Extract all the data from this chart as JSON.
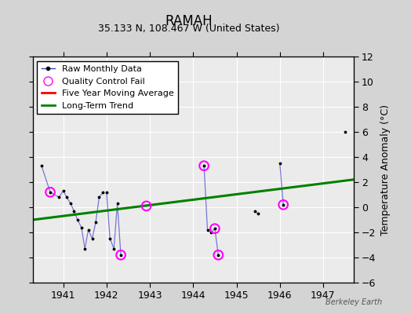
{
  "title": "RAMAH",
  "subtitle": "35.133 N, 108.467 W (United States)",
  "ylabel_right": "Temperature Anomaly (°C)",
  "watermark": "Berkeley Earth",
  "xlim": [
    1940.3,
    1947.7
  ],
  "ylim": [
    -6,
    12
  ],
  "yticks": [
    -6,
    -4,
    -2,
    0,
    2,
    4,
    6,
    8,
    10,
    12
  ],
  "xticks": [
    1941,
    1942,
    1943,
    1944,
    1945,
    1946,
    1947
  ],
  "fig_facecolor": "#d4d4d4",
  "ax_facecolor": "#ebebeb",
  "connected_segments": [
    {
      "x": [
        1940.5,
        1940.7,
        1940.9,
        1941.0,
        1941.08,
        1941.17,
        1941.25,
        1941.33,
        1941.42,
        1941.5,
        1941.58,
        1941.67,
        1941.75,
        1941.83,
        1941.92
      ],
      "y": [
        3.3,
        1.2,
        0.8,
        1.3,
        0.8,
        0.3,
        -0.3,
        -1.0,
        -1.6,
        -3.3,
        -1.8,
        -2.5,
        -1.2,
        0.8,
        1.2
      ]
    },
    {
      "x": [
        1942.0,
        1942.08,
        1942.17,
        1942.25,
        1942.33
      ],
      "y": [
        1.2,
        -2.5,
        -3.3,
        0.3,
        -3.8
      ]
    },
    {
      "x": [
        1944.25,
        1944.33,
        1944.42,
        1944.5,
        1944.58
      ],
      "y": [
        3.3,
        -1.8,
        -2.0,
        -1.7,
        -3.8
      ]
    },
    {
      "x": [
        1945.42,
        1945.5
      ],
      "y": [
        -0.3,
        -0.5
      ]
    },
    {
      "x": [
        1946.0,
        1946.08
      ],
      "y": [
        3.5,
        0.2
      ]
    }
  ],
  "raw_data_x": [
    1940.5,
    1940.7,
    1940.9,
    1941.0,
    1941.08,
    1941.17,
    1941.25,
    1941.33,
    1941.42,
    1941.5,
    1941.58,
    1941.67,
    1941.75,
    1941.83,
    1941.92,
    1942.0,
    1942.08,
    1942.17,
    1942.25,
    1942.33,
    1944.25,
    1944.33,
    1944.42,
    1944.5,
    1944.58,
    1945.42,
    1945.5,
    1946.0,
    1946.08,
    1947.5
  ],
  "raw_data_y": [
    3.3,
    1.2,
    0.8,
    1.3,
    0.8,
    0.3,
    -0.3,
    -1.0,
    -1.6,
    -3.3,
    -1.8,
    -2.5,
    -1.2,
    0.8,
    1.2,
    1.2,
    -2.5,
    -3.3,
    0.3,
    -3.8,
    3.3,
    -1.8,
    -2.0,
    -1.7,
    -3.8,
    -0.3,
    -0.5,
    3.5,
    0.2,
    6.0
  ],
  "qc_fail_x": [
    1940.7,
    1942.33,
    1942.92,
    1944.25,
    1944.5,
    1944.58,
    1946.08
  ],
  "qc_fail_y": [
    1.2,
    -3.8,
    0.1,
    3.3,
    -1.7,
    -3.8,
    0.2
  ],
  "trend_x": [
    1940.3,
    1947.7
  ],
  "trend_y": [
    -1.0,
    2.2
  ],
  "moving_avg_x": [],
  "moving_avg_y": []
}
